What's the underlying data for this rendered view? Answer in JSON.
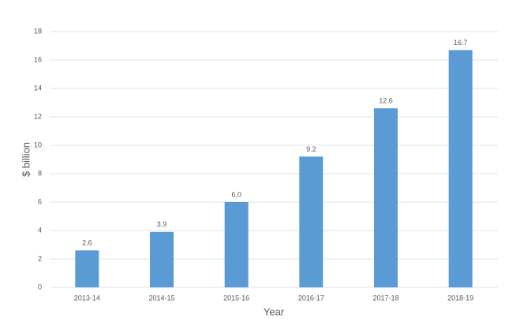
{
  "chart_data": {
    "type": "bar",
    "x_label": "Year",
    "y_label": "$ billion",
    "categories": [
      "2013-14",
      "2014-15",
      "2015-16",
      "2016-17",
      "2017-18",
      "2018-19"
    ],
    "values": [
      2.6,
      3.9,
      6,
      9.2,
      12.6,
      16.7
    ],
    "value_labels": [
      "2.6",
      "3.9",
      "6.0",
      "9.2",
      "12.6",
      "16.7"
    ],
    "color": "#5b9bd5",
    "ylim": [
      0,
      18
    ],
    "yticks": [
      0,
      2,
      4,
      6,
      8,
      10,
      12,
      14,
      16,
      18
    ],
    "grid": true
  }
}
